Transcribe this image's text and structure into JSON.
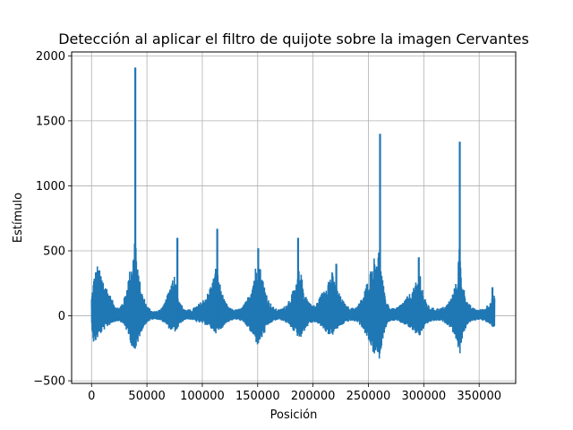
{
  "chart_data": {
    "type": "line",
    "title": "Detección al aplicar el filtro de quijote sobre la imagen Cervantes",
    "xlabel": "Posición",
    "ylabel": "Estímulo",
    "xlim": [
      -18000,
      383000
    ],
    "ylim": [
      -520,
      2030
    ],
    "xticks": [
      0,
      50000,
      100000,
      150000,
      200000,
      250000,
      300000,
      350000
    ],
    "xtick_labels": [
      "0",
      "50000",
      "100000",
      "150000",
      "200000",
      "250000",
      "300000",
      "350000"
    ],
    "yticks": [
      -500,
      0,
      500,
      1000,
      1500,
      2000
    ],
    "ytick_labels": [
      "−500",
      "0",
      "500",
      "1000",
      "1500",
      "2000"
    ],
    "grid": true,
    "series": [
      {
        "name": "",
        "color": "#1f77b4",
        "x_range": [
          0,
          364000
        ],
        "envelope": {
          "x": [
            0,
            2000,
            5000,
            10000,
            15000,
            20000,
            25000,
            30000,
            35000,
            38000,
            39500,
            41000,
            45000,
            50000,
            55000,
            60000,
            65000,
            70000,
            74000,
            77000,
            80000,
            85000,
            90000,
            95000,
            100000,
            105000,
            110000,
            113000,
            116000,
            120000,
            125000,
            130000,
            135000,
            140000,
            145000,
            150000,
            155000,
            160000,
            165000,
            170000,
            175000,
            180000,
            185000,
            188000,
            192000,
            197000,
            202000,
            208000,
            213000,
            217000,
            220000,
            225000,
            230000,
            235000,
            240000,
            245000,
            250000,
            255000,
            259000,
            261000,
            265000,
            270000,
            275000,
            280000,
            285000,
            290000,
            294000,
            297000,
            300000,
            305000,
            310000,
            315000,
            320000,
            325000,
            330000,
            332000,
            335000,
            340000,
            345000,
            350000,
            355000,
            360000,
            364000
          ],
          "upper": [
            150,
            300,
            400,
            300,
            200,
            100,
            60,
            150,
            380,
            500,
            720,
            400,
            200,
            80,
            40,
            40,
            80,
            200,
            350,
            250,
            100,
            50,
            50,
            80,
            120,
            180,
            300,
            420,
            250,
            120,
            60,
            50,
            60,
            120,
            250,
            470,
            280,
            120,
            60,
            50,
            80,
            160,
            250,
            380,
            200,
            100,
            80,
            180,
            280,
            350,
            250,
            150,
            80,
            60,
            80,
            150,
            300,
            450,
            540,
            400,
            150,
            60,
            60,
            100,
            150,
            200,
            280,
            350,
            150,
            70,
            60,
            60,
            80,
            150,
            280,
            550,
            250,
            100,
            60,
            50,
            60,
            120,
            160
          ],
          "lower": [
            -60,
            -230,
            -180,
            -120,
            -80,
            -50,
            -40,
            -80,
            -200,
            -280,
            -330,
            -230,
            -120,
            -50,
            -30,
            -30,
            -50,
            -100,
            -130,
            -120,
            -60,
            -30,
            -30,
            -50,
            -60,
            -80,
            -120,
            -140,
            -120,
            -70,
            -40,
            -30,
            -40,
            -80,
            -150,
            -230,
            -160,
            -70,
            -40,
            -30,
            -50,
            -90,
            -150,
            -180,
            -120,
            -60,
            -50,
            -90,
            -140,
            -160,
            -120,
            -80,
            -50,
            -40,
            -50,
            -100,
            -200,
            -300,
            -370,
            -280,
            -100,
            -40,
            -40,
            -60,
            -80,
            -120,
            -150,
            -160,
            -100,
            -50,
            -40,
            -40,
            -60,
            -100,
            -200,
            -330,
            -160,
            -60,
            -40,
            -30,
            -40,
            -80,
            -90
          ]
        },
        "spikes": [
          {
            "x": 39500,
            "y": 1910
          },
          {
            "x": 77500,
            "y": 600
          },
          {
            "x": 113500,
            "y": 670
          },
          {
            "x": 150500,
            "y": 520
          },
          {
            "x": 186500,
            "y": 600
          },
          {
            "x": 221000,
            "y": 400
          },
          {
            "x": 260500,
            "y": 1400
          },
          {
            "x": 295500,
            "y": 450
          },
          {
            "x": 332500,
            "y": 1340
          },
          {
            "x": 362000,
            "y": 220
          }
        ]
      }
    ]
  }
}
